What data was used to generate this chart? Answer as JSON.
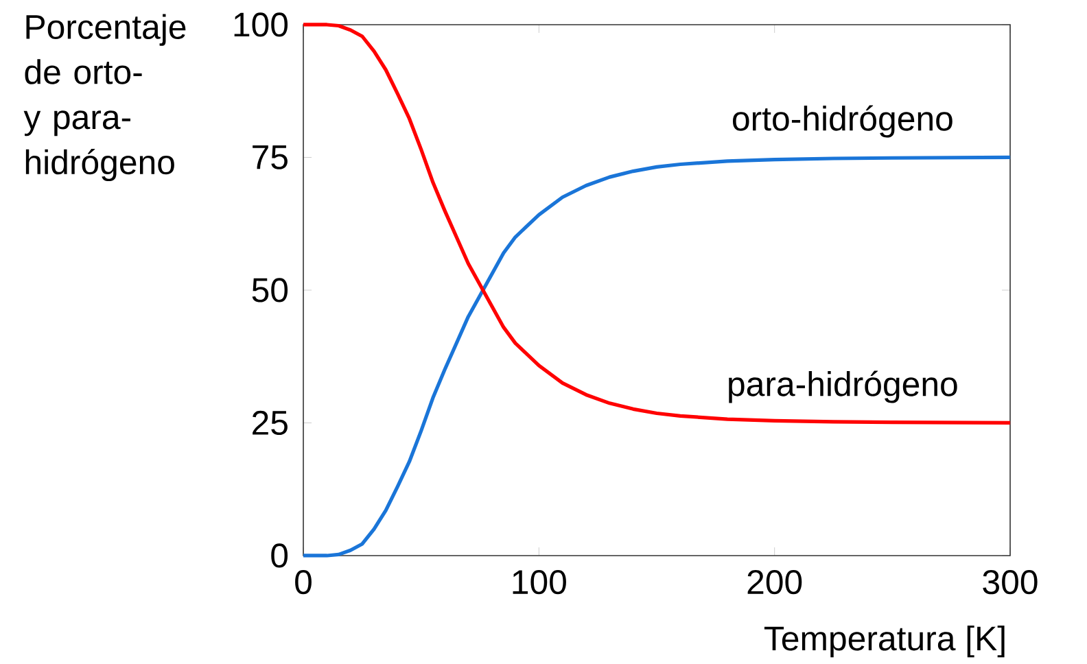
{
  "chart_data": {
    "type": "line",
    "xlabel": "Temperatura [K]",
    "ylabel": "Porcentaje de orto- y para-hidrógeno",
    "x": [
      0,
      10,
      15,
      20,
      25,
      30,
      35,
      40,
      45,
      50,
      55,
      60,
      65,
      70,
      75,
      80,
      85,
      90,
      100,
      110,
      120,
      130,
      140,
      150,
      160,
      180,
      200,
      225,
      250,
      300
    ],
    "series": [
      {
        "name": "orto-hidrógeno",
        "color": "#1a75d8",
        "values": [
          0,
          0,
          0.2,
          1,
          2.2,
          5,
          8.5,
          13,
          17.7,
          23.5,
          29.7,
          35,
          40,
          45,
          49,
          53,
          57,
          60,
          64.2,
          67.5,
          69.7,
          71.3,
          72.4,
          73.2,
          73.7,
          74.3,
          74.6,
          74.8,
          74.9,
          75
        ]
      },
      {
        "name": "para-hidrógeno",
        "color": "#ff0000",
        "values": [
          100,
          100,
          99.8,
          99,
          97.8,
          95,
          91.5,
          87,
          82.3,
          76.5,
          70.3,
          65,
          60,
          55,
          51,
          47,
          43,
          40,
          35.8,
          32.5,
          30.3,
          28.7,
          27.6,
          26.8,
          26.3,
          25.7,
          25.4,
          25.2,
          25.1,
          25
        ]
      }
    ],
    "xlim": [
      0,
      300
    ],
    "ylim": [
      0,
      100
    ],
    "xticks": [
      0,
      100,
      200,
      300
    ],
    "yticks": [
      0,
      25,
      50,
      75,
      100
    ]
  }
}
